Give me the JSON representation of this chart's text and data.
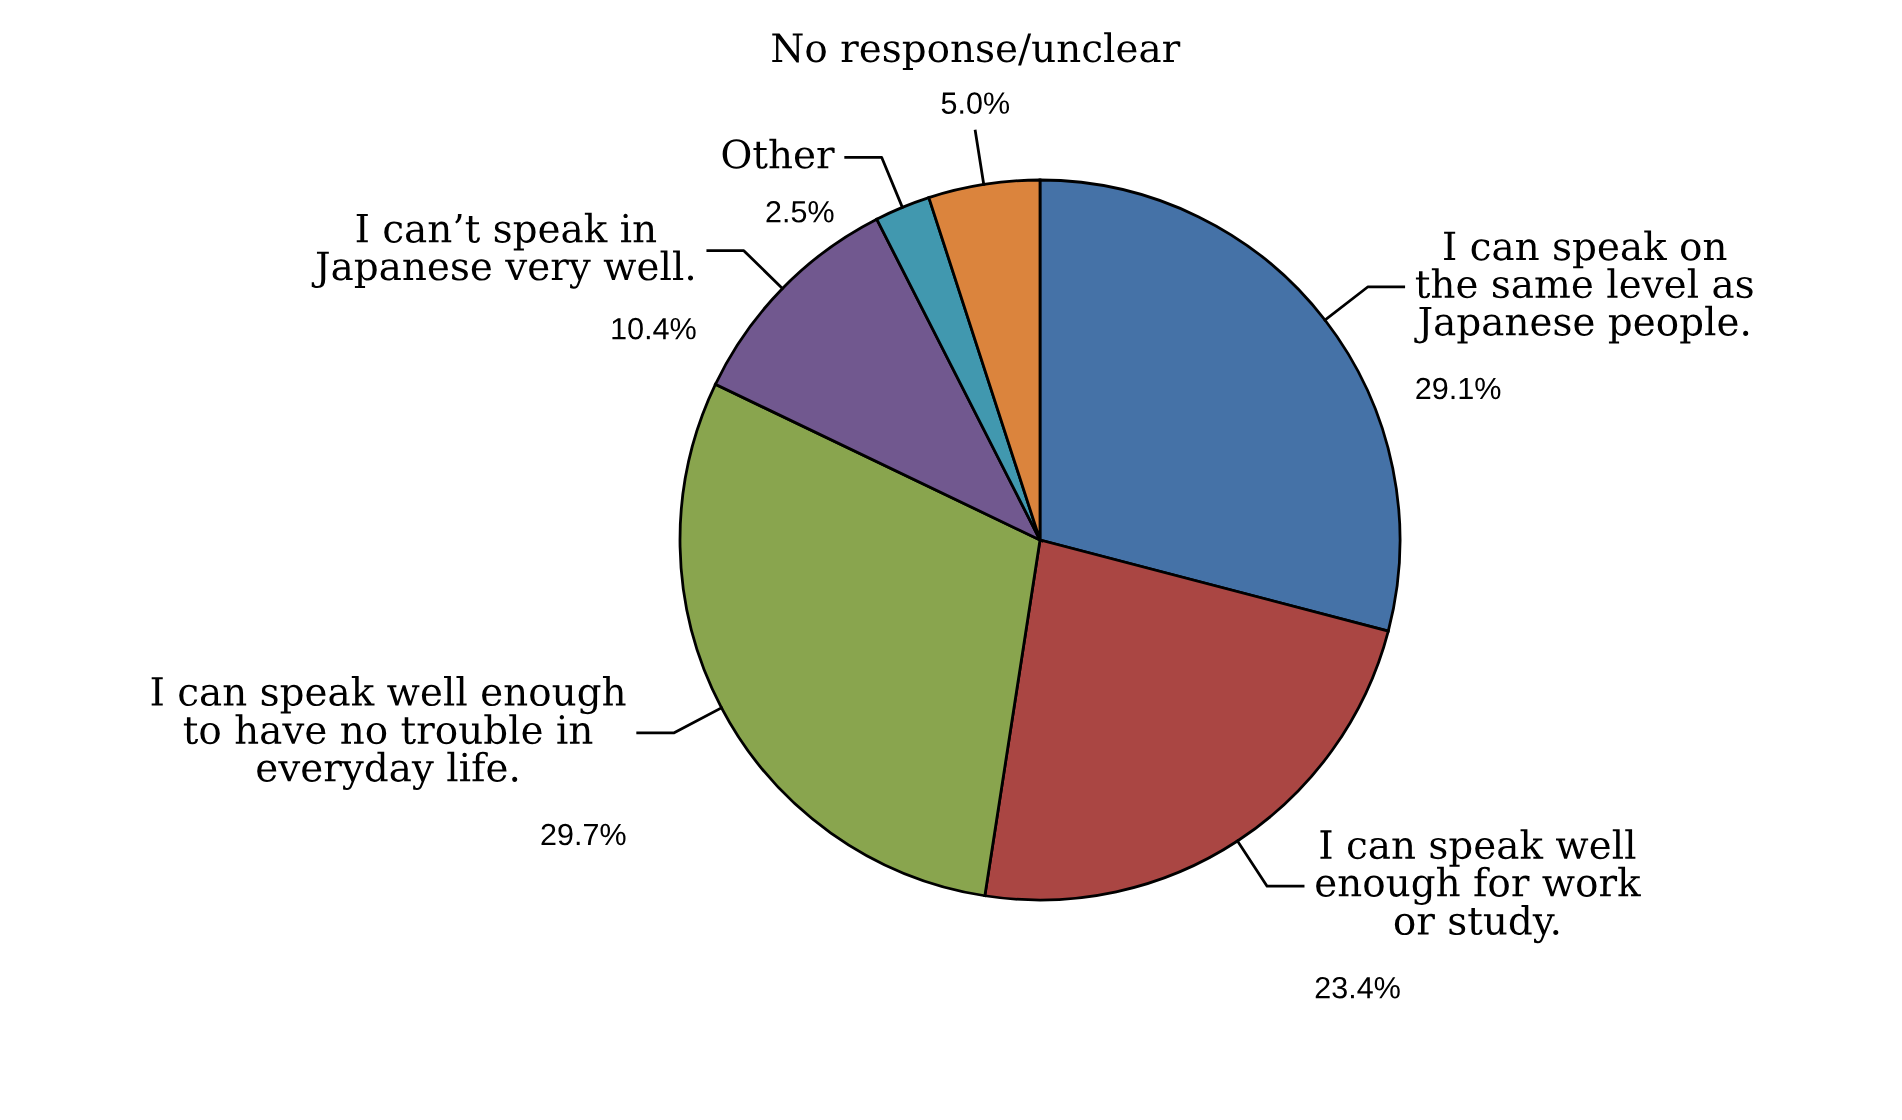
{
  "chart_data": {
    "type": "pie",
    "categories": [
      "I can speak on\nthe same level as\nJapanese people.",
      "I can speak well\nenough for work\nor study.",
      "I can speak well enough\nto have no trouble in\neveryday life.",
      "I can’t speak in\nJapanese very well.",
      "Other",
      "No response/unclear"
    ],
    "values": [
      29.1,
      23.4,
      29.7,
      10.4,
      2.5,
      5.0
    ],
    "value_labels": [
      "29.1%",
      "23.4%",
      "29.7%",
      "10.4%",
      "2.5%",
      "5.0%"
    ],
    "colors": [
      "#4572a7",
      "#aa4643",
      "#89a54e",
      "#71588f",
      "#4198af",
      "#db843d"
    ]
  }
}
